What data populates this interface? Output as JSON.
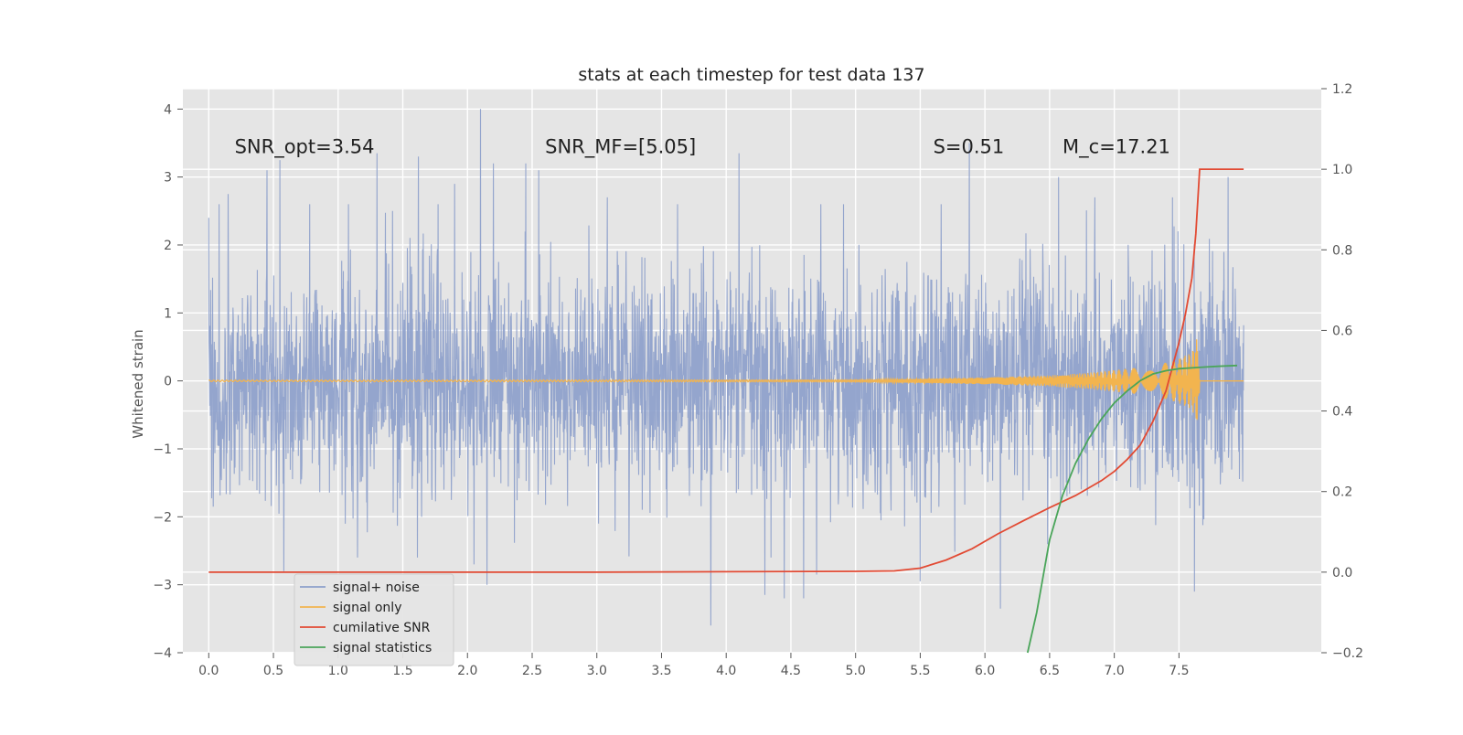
{
  "chart_data": {
    "type": "line",
    "title": "stats at each timestep for test data 137",
    "ylabel": "Whitened strain",
    "y2label": "",
    "xlabel": "",
    "xlim": [
      -0.2,
      8.6
    ],
    "ylim": [
      -4,
      4.3
    ],
    "y2lim": [
      -0.2,
      1.2
    ],
    "grid": true,
    "background": "#e5e5e5",
    "x_ticks": [
      0.0,
      0.5,
      1.0,
      1.5,
      2.0,
      2.5,
      3.0,
      3.5,
      4.0,
      4.5,
      5.0,
      5.5,
      6.0,
      6.5,
      7.0,
      7.5
    ],
    "x_tick_labels": [
      "0.0",
      "0.5",
      "1.0",
      "1.5",
      "2.0",
      "2.5",
      "3.0",
      "3.5",
      "4.0",
      "4.5",
      "5.0",
      "5.5",
      "6.0",
      "6.5",
      "7.0",
      "7.5"
    ],
    "y_ticks": [
      -4,
      -3,
      -2,
      -1,
      0,
      1,
      2,
      3,
      4
    ],
    "y_tick_labels": [
      "−4",
      "−3",
      "−2",
      "−1",
      "0",
      "1",
      "2",
      "3",
      "4"
    ],
    "y2_ticks": [
      -0.2,
      0.0,
      0.2,
      0.4,
      0.6,
      0.8,
      1.0,
      1.2
    ],
    "y2_tick_labels": [
      "−0.2",
      "0.0",
      "0.2",
      "0.4",
      "0.6",
      "0.8",
      "1.0",
      "1.2"
    ],
    "annotations": [
      {
        "id": "snr-opt",
        "text": "SNR_opt=3.54",
        "x": 0.2,
        "y": 3.3
      },
      {
        "id": "snr-mf",
        "text": "SNR_MF=[5.05]",
        "x": 2.6,
        "y": 3.3
      },
      {
        "id": "s-stat",
        "text": "S=0.51",
        "x": 5.6,
        "y": 3.3
      },
      {
        "id": "mc",
        "text": "M_c=17.21",
        "x": 6.6,
        "y": 3.3
      }
    ],
    "legend": {
      "placement": "lower-left",
      "entries": [
        {
          "label": "signal+ noise",
          "color": "#8da0cb"
        },
        {
          "label": "signal only",
          "color": "#f2b44f"
        },
        {
          "label": "cumilative SNR",
          "color": "#e24a33"
        },
        {
          "label": "signal statistics",
          "color": "#4aa55a"
        }
      ]
    },
    "series": [
      {
        "name": "signal+ noise",
        "axis": "left",
        "color": "#8da0cb",
        "x_range": [
          0.0,
          8.0
        ],
        "typical_amplitude": 1.5,
        "peaks": [
          {
            "x": 0.0,
            "y": 2.4
          },
          {
            "x": 0.08,
            "y": 2.6
          },
          {
            "x": 0.15,
            "y": 2.75
          },
          {
            "x": 0.45,
            "y": 3.1
          },
          {
            "x": 0.55,
            "y": 3.25
          },
          {
            "x": 0.58,
            "y": -2.8
          },
          {
            "x": 0.78,
            "y": 2.6
          },
          {
            "x": 1.08,
            "y": 2.6
          },
          {
            "x": 1.3,
            "y": 3.35
          },
          {
            "x": 1.42,
            "y": 2.5
          },
          {
            "x": 1.62,
            "y": 3.3
          },
          {
            "x": 1.9,
            "y": 2.9
          },
          {
            "x": 2.05,
            "y": -2.7
          },
          {
            "x": 2.1,
            "y": 4.0
          },
          {
            "x": 2.15,
            "y": -3.0
          },
          {
            "x": 2.2,
            "y": 3.2
          },
          {
            "x": 2.45,
            "y": 3.2
          },
          {
            "x": 2.55,
            "y": 3.1
          },
          {
            "x": 3.08,
            "y": 2.7
          },
          {
            "x": 3.88,
            "y": -3.6
          },
          {
            "x": 4.1,
            "y": 3.35
          },
          {
            "x": 4.3,
            "y": -3.15
          },
          {
            "x": 4.45,
            "y": -3.2
          },
          {
            "x": 4.6,
            "y": -3.2
          },
          {
            "x": 4.7,
            "y": -2.85
          },
          {
            "x": 5.5,
            "y": -2.95
          },
          {
            "x": 5.88,
            "y": 3.5
          },
          {
            "x": 6.12,
            "y": -3.35
          },
          {
            "x": 6.57,
            "y": 3.0
          },
          {
            "x": 6.85,
            "y": 2.7
          },
          {
            "x": 7.45,
            "y": 2.7
          },
          {
            "x": 7.62,
            "y": -3.1
          },
          {
            "x": 7.88,
            "y": 3.0
          }
        ]
      },
      {
        "name": "signal only",
        "axis": "left",
        "color": "#f2b44f",
        "x": [
          0.0,
          5.0,
          5.5,
          6.0,
          6.5,
          6.8,
          7.0,
          7.2,
          7.4,
          7.5,
          7.6,
          7.65,
          7.66,
          8.0
        ],
        "envelope": [
          0.01,
          0.015,
          0.03,
          0.05,
          0.08,
          0.12,
          0.16,
          0.2,
          0.27,
          0.33,
          0.42,
          0.68,
          0.0,
          0.0
        ]
      },
      {
        "name": "cumilative SNR",
        "axis": "right",
        "color": "#e24a33",
        "x": [
          0.0,
          1.0,
          2.0,
          3.0,
          4.0,
          5.0,
          5.3,
          5.5,
          5.7,
          5.9,
          6.1,
          6.3,
          6.5,
          6.7,
          6.9,
          7.0,
          7.1,
          7.2,
          7.3,
          7.4,
          7.5,
          7.55,
          7.6,
          7.63,
          7.66,
          7.7,
          7.8,
          7.9,
          8.0
        ],
        "y": [
          0.0,
          0.0,
          0.0,
          0.0,
          0.001,
          0.002,
          0.003,
          0.01,
          0.03,
          0.058,
          0.095,
          0.128,
          0.16,
          0.19,
          0.227,
          0.25,
          0.28,
          0.315,
          0.375,
          0.45,
          0.57,
          0.64,
          0.73,
          0.84,
          1.0,
          1.0,
          1.0,
          1.0,
          1.0
        ]
      },
      {
        "name": "signal statistics",
        "axis": "right",
        "color": "#4aa55a",
        "x": [
          6.33,
          6.4,
          6.5,
          6.6,
          6.7,
          6.8,
          6.9,
          7.0,
          7.1,
          7.2,
          7.3,
          7.4,
          7.5,
          7.6,
          7.7,
          7.8,
          7.95
        ],
        "y": [
          -0.2,
          -0.1,
          0.08,
          0.19,
          0.27,
          0.33,
          0.38,
          0.42,
          0.45,
          0.475,
          0.492,
          0.5,
          0.505,
          0.507,
          0.509,
          0.511,
          0.513
        ]
      }
    ]
  }
}
